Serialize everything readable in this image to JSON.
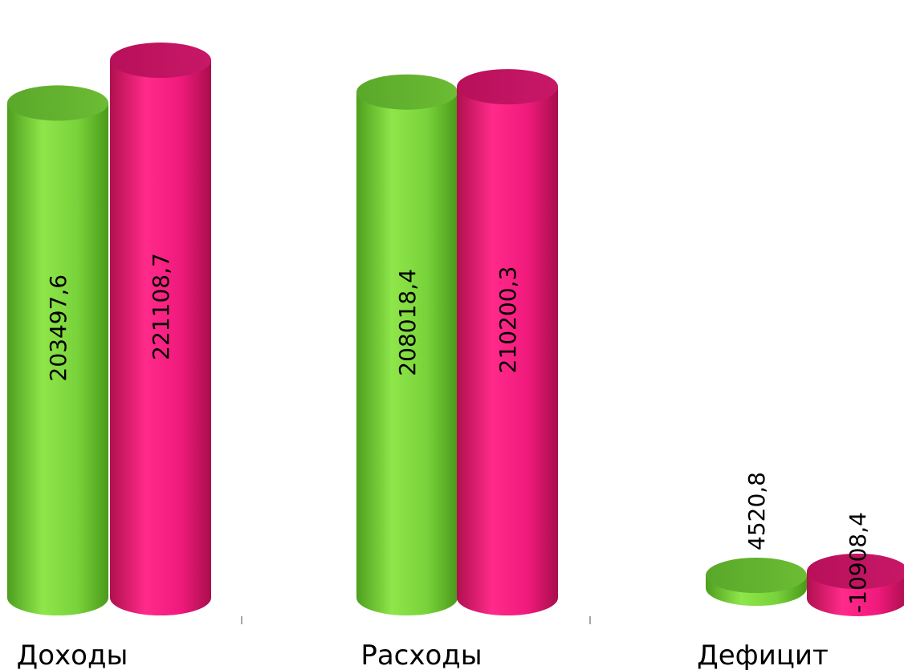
{
  "chart_data": {
    "type": "bar",
    "style": "3d-cylinder",
    "categories": [
      "Доходы",
      "Расходы",
      "Дефицит"
    ],
    "series": [
      {
        "color": "#80d840",
        "values": [
          203497.6,
          208018.4,
          4520.8
        ],
        "labels": [
          "203497,6",
          "208018,4",
          "4520,8"
        ]
      },
      {
        "color": "#f01a7c",
        "values": [
          221108.7,
          210200.3,
          -10908.4
        ],
        "labels": [
          "221108,7",
          "210200,3",
          "-10908,4"
        ]
      }
    ],
    "grid": false,
    "legend": "none"
  }
}
